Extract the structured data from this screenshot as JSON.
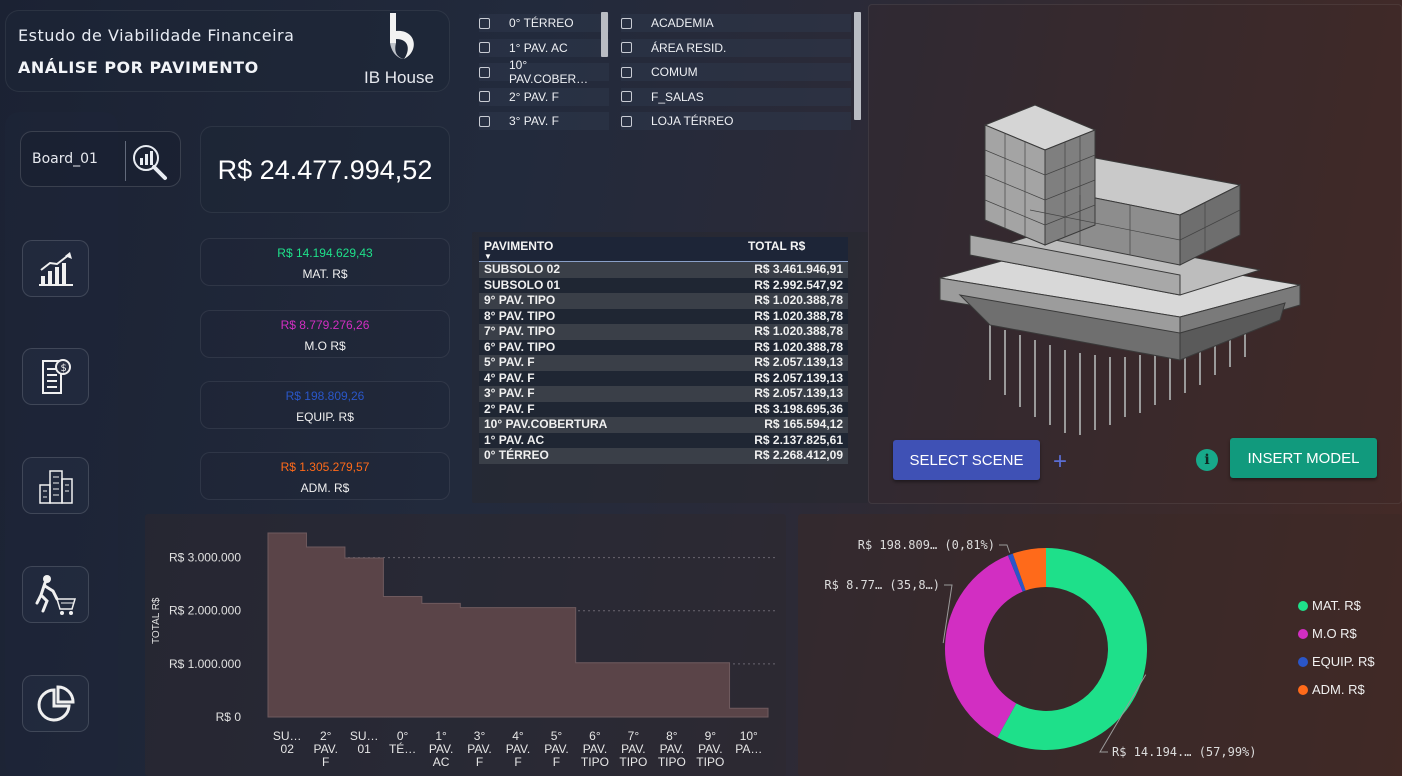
{
  "header": {
    "title": "Estudo de Viabilidade Financeira",
    "subtitle": "ANÁLISE POR PAVIMENTO",
    "brand": "IB House"
  },
  "board": {
    "label": "Board_01",
    "icon": "search-chart-icon"
  },
  "sidebar": {
    "items": [
      {
        "icon": "growth-chart-icon"
      },
      {
        "icon": "invoice-icon"
      },
      {
        "icon": "buildings-icon"
      },
      {
        "icon": "shopping-cart-runner-icon"
      },
      {
        "icon": "pie-chart-icon"
      }
    ]
  },
  "kpis": {
    "total": "R$ 24.477.994,52",
    "items": [
      {
        "value": "R$ 14.194.629,43",
        "label": "MAT. R$",
        "color": "#1ee08a"
      },
      {
        "value": "R$ 8.779.276,26",
        "label": "M.O R$",
        "color": "#d22ec2"
      },
      {
        "value": "R$ 198.809,26",
        "label": "EQUIP. R$",
        "color": "#2a56c8"
      },
      {
        "value": "R$ 1.305.279,57",
        "label": "ADM. R$",
        "color": "#ff6a1a"
      }
    ]
  },
  "slicer_pavimento": [
    "0° TÉRREO",
    "1° PAV. AC",
    "10° PAV.COBER…",
    "2° PAV. F",
    "3° PAV. F"
  ],
  "slicer_area": [
    "ACADEMIA",
    "ÁREA RESID.",
    "COMUM",
    "F_SALAS",
    "LOJA TÉRREO"
  ],
  "table": {
    "headers": [
      "PAVIMENTO",
      "TOTAL R$"
    ],
    "rows": [
      [
        "SUBSOLO 02",
        "R$ 3.461.946,91"
      ],
      [
        "SUBSOLO 01",
        "R$ 2.992.547,92"
      ],
      [
        "9° PAV. TIPO",
        "R$ 1.020.388,78"
      ],
      [
        "8° PAV. TIPO",
        "R$ 1.020.388,78"
      ],
      [
        "7° PAV. TIPO",
        "R$ 1.020.388,78"
      ],
      [
        "6° PAV. TIPO",
        "R$ 1.020.388,78"
      ],
      [
        "5° PAV. F",
        "R$ 2.057.139,13"
      ],
      [
        "4° PAV. F",
        "R$ 2.057.139,13"
      ],
      [
        "3° PAV. F",
        "R$ 2.057.139,13"
      ],
      [
        "2° PAV. F",
        "R$ 3.198.695,36"
      ],
      [
        "10° PAV.COBERTURA",
        "R$ 165.594,12"
      ],
      [
        "1° PAV. AC",
        "R$ 2.137.825,61"
      ],
      [
        "0° TÉRREO",
        "R$ 2.268.412,09"
      ]
    ]
  },
  "model": {
    "select_scene": "SELECT SCENE",
    "insert_model": "INSERT MODEL"
  },
  "chart_data": [
    {
      "type": "area",
      "ylabel": "TOTAL R$",
      "ylim": [
        0,
        3500000
      ],
      "yticks": [
        {
          "value": 0,
          "label": "R$ 0"
        },
        {
          "value": 1000000,
          "label": "R$ 1.000.000"
        },
        {
          "value": 2000000,
          "label": "R$ 2.000.000"
        },
        {
          "value": 3000000,
          "label": "R$ 3.000.000"
        }
      ],
      "categories": [
        [
          "SU…",
          "02"
        ],
        [
          "2°",
          "PAV.",
          "F"
        ],
        [
          "SU…",
          "01"
        ],
        [
          "0°",
          "TÉ…"
        ],
        [
          "1°",
          "PAV.",
          "AC"
        ],
        [
          "3°",
          "PAV.",
          "F"
        ],
        [
          "4°",
          "PAV.",
          "F"
        ],
        [
          "5°",
          "PAV.",
          "F"
        ],
        [
          "6°",
          "PAV.",
          "TIPO"
        ],
        [
          "7°",
          "PAV.",
          "TIPO"
        ],
        [
          "8°",
          "PAV.",
          "TIPO"
        ],
        [
          "9°",
          "PAV.",
          "TIPO"
        ],
        [
          "10°",
          "PA…"
        ]
      ],
      "values": [
        3461946.91,
        3198695.36,
        2992547.92,
        2268412.09,
        2137825.61,
        2057139.13,
        2057139.13,
        2057139.13,
        1020388.78,
        1020388.78,
        1020388.78,
        1020388.78,
        165594.12
      ],
      "grid": true
    },
    {
      "type": "pie",
      "donut": true,
      "series": [
        {
          "name": "MAT. R$",
          "value": 14194629.43,
          "percent": 57.99,
          "color": "#1ee08a",
          "label": "R$ 14.194.… (57,99%)"
        },
        {
          "name": "M.O R$",
          "value": 8779276.26,
          "percent": 35.87,
          "color": "#d22ec2",
          "label": "R$ 8.77… (35,8…)"
        },
        {
          "name": "EQUIP. R$",
          "value": 198809.26,
          "percent": 0.81,
          "color": "#2a56c8",
          "label": "R$ 198.809… (0,81%)"
        },
        {
          "name": "ADM. R$",
          "value": 1305279.57,
          "percent": 5.33,
          "color": "#ff6a1a",
          "label": ""
        }
      ],
      "legend": "right"
    }
  ]
}
